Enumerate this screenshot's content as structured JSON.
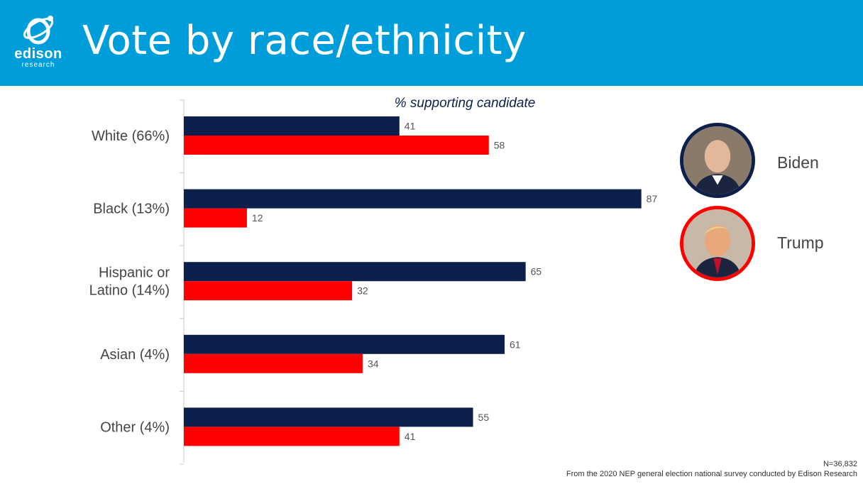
{
  "header": {
    "title": "Vote by race/ethnicity",
    "logo_word": "edison",
    "logo_sub": "research",
    "background_color": "#009ddb"
  },
  "legend": {
    "items": [
      {
        "label": "Biden",
        "color": "#0d1f4b"
      },
      {
        "label": "Trump",
        "color": "#ff0000"
      }
    ]
  },
  "footer": {
    "n_label": "N=36,832",
    "source": "From the 2020 NEP general election national survey conducted by Edison Research"
  },
  "chart_data": {
    "type": "bar",
    "orientation": "horizontal",
    "title": "% supporting candidate",
    "categories": [
      "White (66%)",
      "Black (13%)",
      "Hispanic or Latino (14%)",
      "Asian (4%)",
      "Other (4%)"
    ],
    "category_lines": [
      [
        "White (66%)"
      ],
      [
        "Black (13%)"
      ],
      [
        "Hispanic or",
        "Latino (14%)"
      ],
      [
        "Asian (4%)"
      ],
      [
        "Other (4%)"
      ]
    ],
    "series": [
      {
        "name": "Biden",
        "color": "#0d1f4b",
        "values": [
          41,
          87,
          65,
          61,
          55
        ]
      },
      {
        "name": "Trump",
        "color": "#ff0000",
        "values": [
          58,
          12,
          32,
          34,
          41
        ]
      }
    ],
    "xlim": [
      0,
      100
    ],
    "grid": false,
    "data_labels": true,
    "legend_position": "right"
  }
}
